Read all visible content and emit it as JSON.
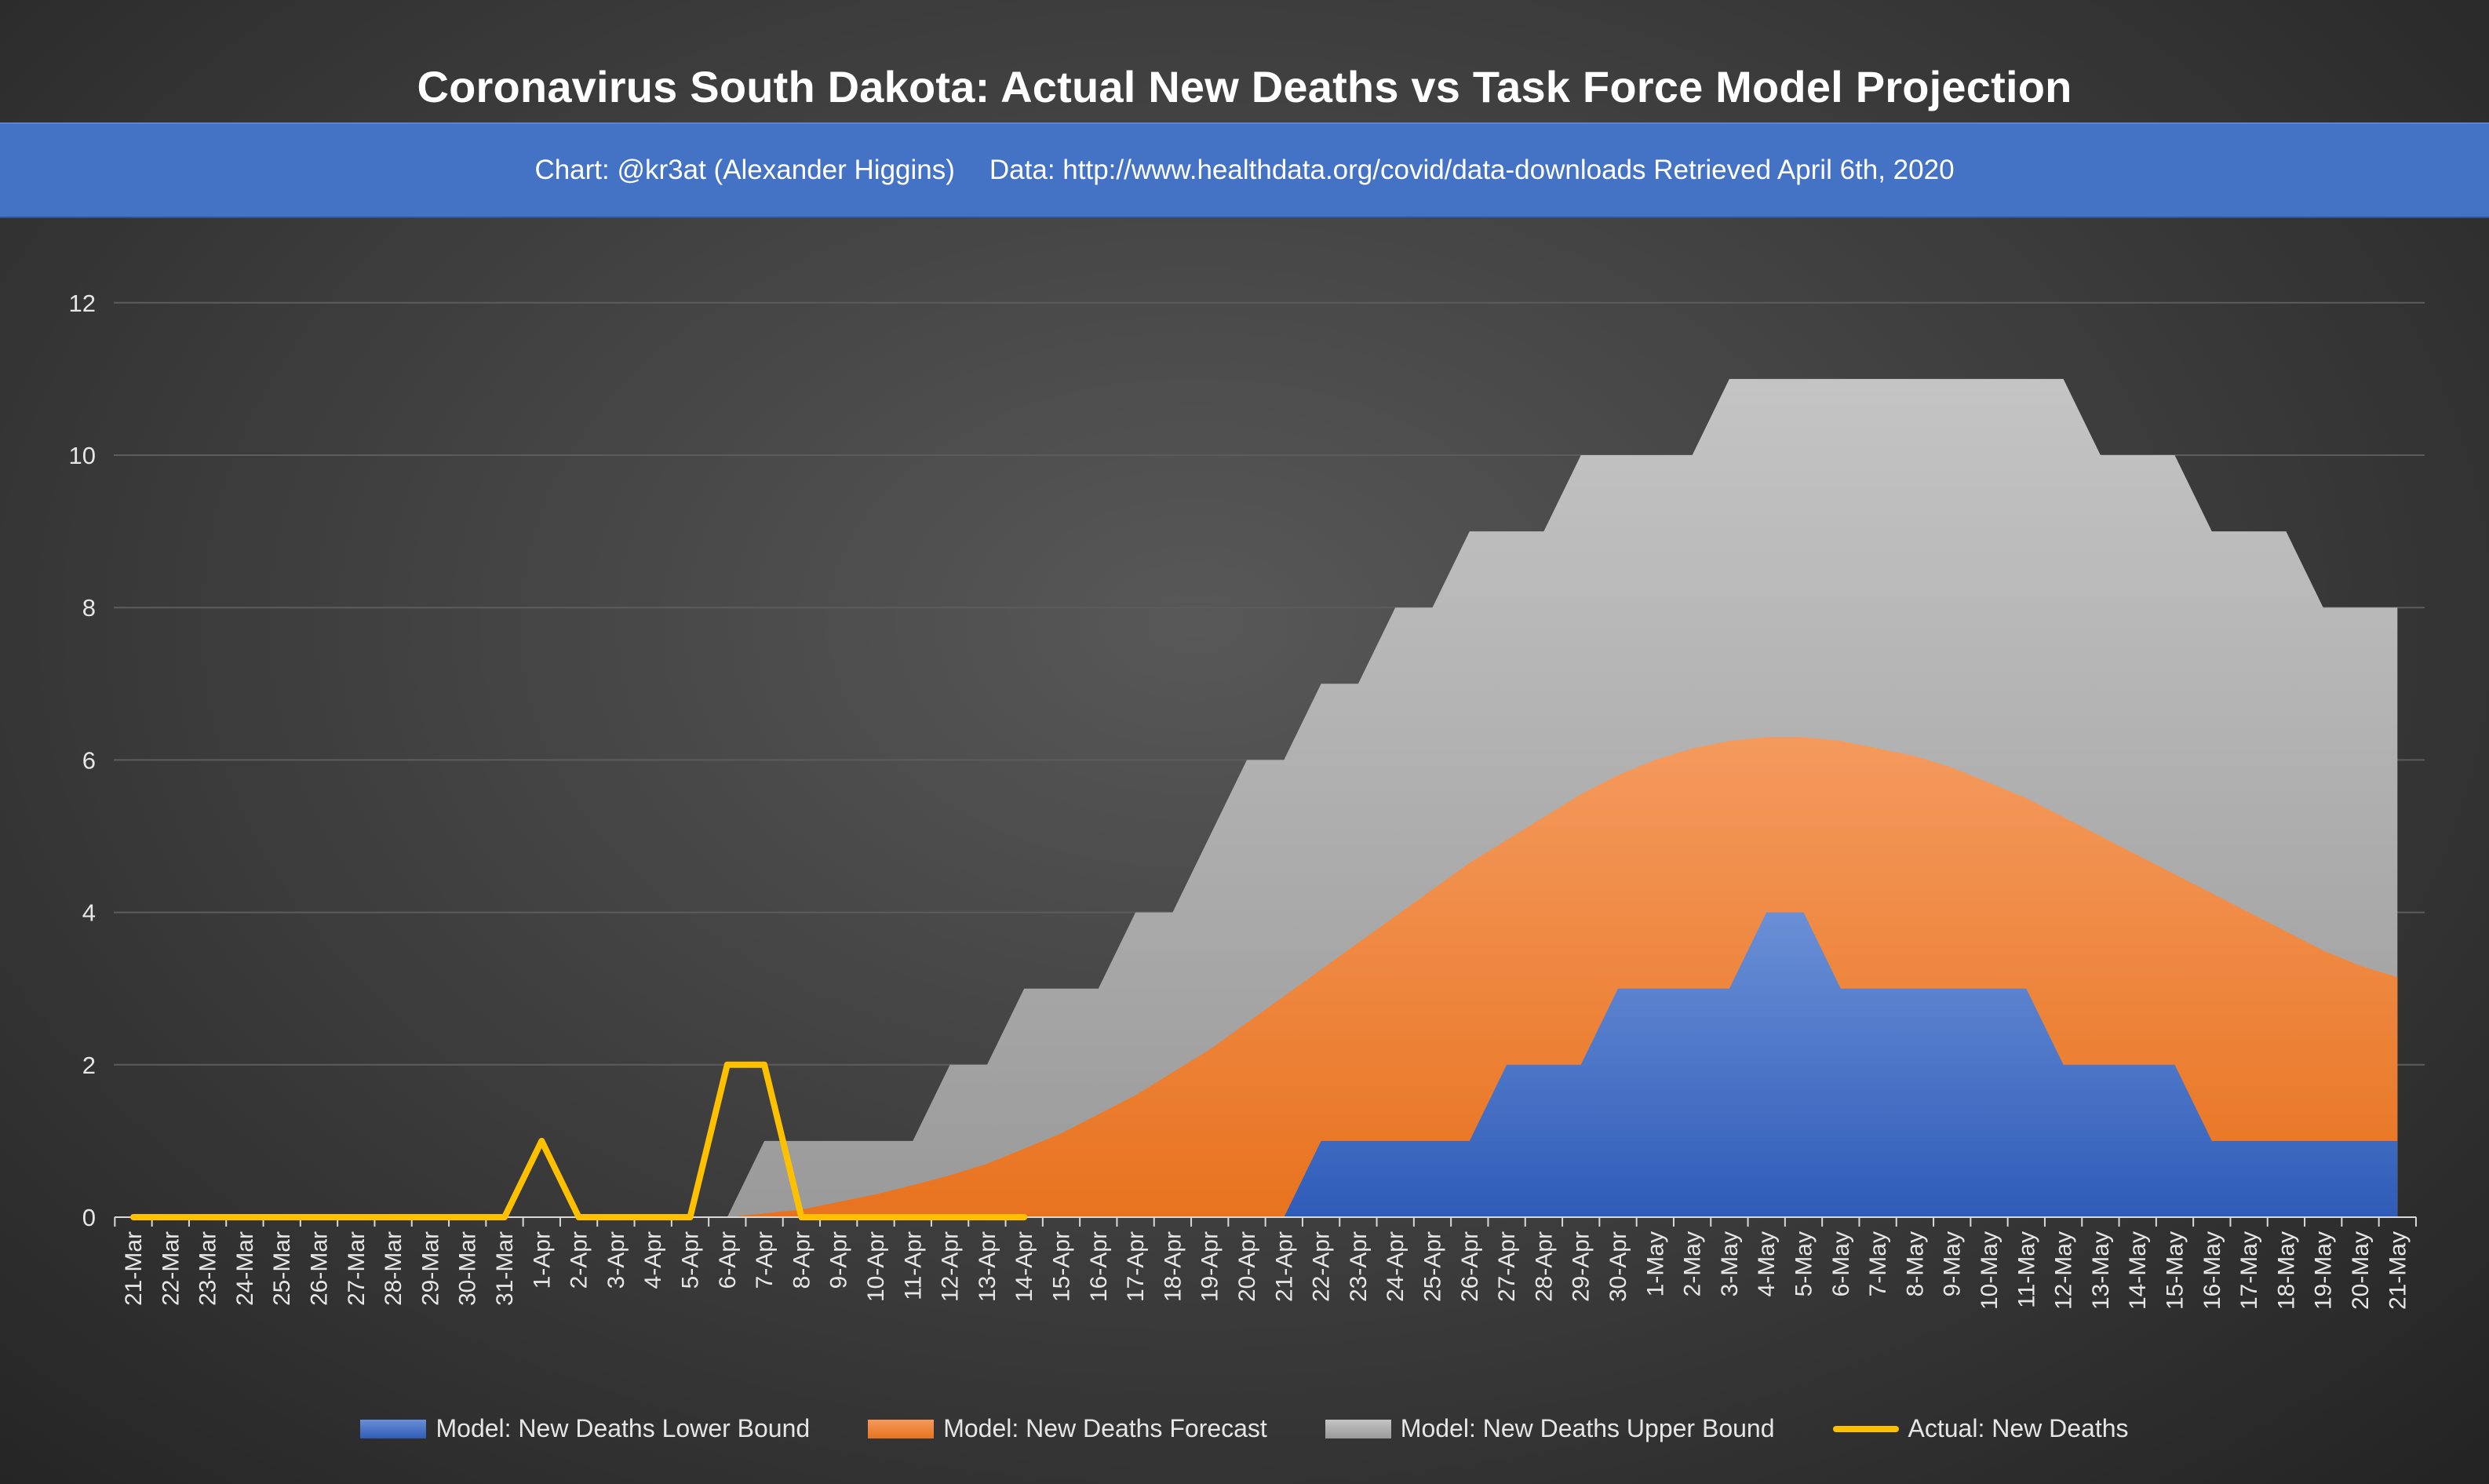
{
  "title": "Coronavirus South Dakota: Actual New Deaths vs Task Force Model Projection",
  "subtitle": {
    "credit": "Chart: @kr3at (Alexander Higgins)",
    "source": "Data: http://www.healthdata.org/covid/data-downloads Retrieved April 6th, 2020"
  },
  "colors": {
    "lower": "#4472c4",
    "forecast": "#ed7d31",
    "upper": "#a5a5a5",
    "actual": "#ffc000",
    "banner": "#4472c4"
  },
  "chart_data": {
    "type": "area",
    "title": "Coronavirus South Dakota: Actual New Deaths vs Task Force Model Projection",
    "xlabel": "",
    "ylabel": "",
    "ylim": [
      0,
      12
    ],
    "yticks": [
      0,
      2,
      4,
      6,
      8,
      10,
      12
    ],
    "grid": true,
    "legend_position": "bottom",
    "categories": [
      "21-Mar",
      "22-Mar",
      "23-Mar",
      "24-Mar",
      "25-Mar",
      "26-Mar",
      "27-Mar",
      "28-Mar",
      "29-Mar",
      "30-Mar",
      "31-Mar",
      "1-Apr",
      "2-Apr",
      "3-Apr",
      "4-Apr",
      "5-Apr",
      "6-Apr",
      "7-Apr",
      "8-Apr",
      "9-Apr",
      "10-Apr",
      "11-Apr",
      "12-Apr",
      "13-Apr",
      "14-Apr",
      "15-Apr",
      "16-Apr",
      "17-Apr",
      "18-Apr",
      "19-Apr",
      "20-Apr",
      "21-Apr",
      "22-Apr",
      "23-Apr",
      "24-Apr",
      "25-Apr",
      "26-Apr",
      "27-Apr",
      "28-Apr",
      "29-Apr",
      "30-Apr",
      "1-May",
      "2-May",
      "3-May",
      "4-May",
      "5-May",
      "6-May",
      "7-May",
      "8-May",
      "9-May",
      "10-May",
      "11-May",
      "12-May",
      "13-May",
      "14-May",
      "15-May",
      "16-May",
      "17-May",
      "18-May",
      "19-May",
      "20-May",
      "21-May"
    ],
    "series": [
      {
        "name": "Model: New Deaths Upper Bound",
        "kind": "area",
        "values": [
          null,
          null,
          null,
          null,
          null,
          null,
          null,
          null,
          null,
          null,
          null,
          null,
          null,
          null,
          null,
          null,
          0,
          1,
          1,
          1,
          1,
          1,
          2,
          2,
          3,
          3,
          3,
          4,
          4,
          5,
          6,
          6,
          7,
          7,
          8,
          8,
          9,
          9,
          9,
          10,
          10,
          10,
          10,
          11,
          11,
          11,
          11,
          11,
          11,
          11,
          11,
          11,
          11,
          10,
          10,
          10,
          9,
          9,
          9,
          8,
          8,
          8
        ]
      },
      {
        "name": "Model: New Deaths Forecast",
        "kind": "area",
        "values": [
          null,
          null,
          null,
          null,
          null,
          null,
          null,
          null,
          null,
          null,
          null,
          null,
          null,
          null,
          null,
          null,
          0,
          0.05,
          0.1,
          0.2,
          0.3,
          0.42,
          0.55,
          0.7,
          0.9,
          1.1,
          1.35,
          1.6,
          1.9,
          2.2,
          2.55,
          2.9,
          3.25,
          3.6,
          3.95,
          4.3,
          4.65,
          4.95,
          5.25,
          5.55,
          5.8,
          6.0,
          6.15,
          6.25,
          6.3,
          6.3,
          6.25,
          6.15,
          6.05,
          5.9,
          5.7,
          5.5,
          5.25,
          5.0,
          4.75,
          4.5,
          4.25,
          4.0,
          3.75,
          3.5,
          3.3,
          3.15
        ]
      },
      {
        "name": "Model: New Deaths Lower Bound",
        "kind": "area",
        "values": [
          null,
          null,
          null,
          null,
          null,
          null,
          null,
          null,
          null,
          null,
          null,
          null,
          null,
          null,
          null,
          null,
          0,
          0,
          0,
          0,
          0,
          0,
          0,
          0,
          0,
          0,
          0,
          0,
          0,
          0,
          0,
          0,
          1,
          1,
          1,
          1,
          1,
          2,
          2,
          2,
          3,
          3,
          3,
          3,
          4,
          4,
          3,
          3,
          3,
          3,
          3,
          3,
          2,
          2,
          2,
          2,
          1,
          1,
          1,
          1,
          1,
          1
        ]
      },
      {
        "name": "Actual: New Deaths",
        "kind": "line",
        "values": [
          0,
          0,
          0,
          0,
          0,
          0,
          0,
          0,
          0,
          0,
          0,
          1,
          0,
          0,
          0,
          0,
          2,
          2,
          0,
          0,
          0,
          0,
          0,
          0,
          0,
          null,
          null,
          null,
          null,
          null,
          null,
          null,
          null,
          null,
          null,
          null,
          null,
          null,
          null,
          null,
          null,
          null,
          null,
          null,
          null,
          null,
          null,
          null,
          null,
          null,
          null,
          null,
          null,
          null,
          null,
          null,
          null,
          null,
          null,
          null,
          null,
          null
        ]
      }
    ]
  },
  "legend": [
    {
      "label": "Model: New Deaths Lower Bound",
      "style": "box",
      "color": "#4472c4"
    },
    {
      "label": "Model: New Deaths Forecast",
      "style": "box",
      "color": "#ed7d31"
    },
    {
      "label": "Model: New Deaths Upper Bound",
      "style": "box",
      "color": "#a5a5a5"
    },
    {
      "label": "Actual: New Deaths",
      "style": "line",
      "color": "#ffc000"
    }
  ]
}
